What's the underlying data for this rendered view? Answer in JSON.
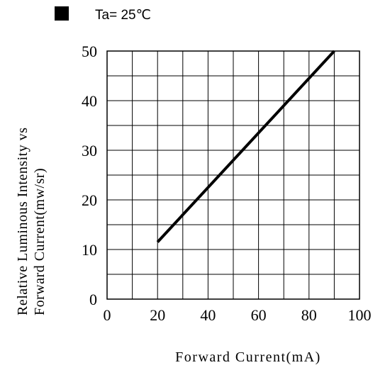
{
  "chart_data": {
    "type": "line",
    "legend_text": "Ta= 25℃",
    "legend_color": "#000000",
    "ylabel_line1": "Relative Luminous Intensity vs",
    "ylabel_line2": "Forward Current(mw/sr)",
    "xlabel": "Forward Current(mA)",
    "xlim": [
      0,
      100
    ],
    "ylim": [
      0,
      50
    ],
    "x_ticks": [
      "0",
      "20",
      "40",
      "60",
      "80",
      "100"
    ],
    "y_ticks": [
      "0",
      "10",
      "20",
      "30",
      "40",
      "50"
    ],
    "grid": true,
    "series": [
      {
        "x": [
          20,
          90
        ],
        "y": [
          11.5,
          50
        ],
        "color": "#000000"
      }
    ]
  }
}
